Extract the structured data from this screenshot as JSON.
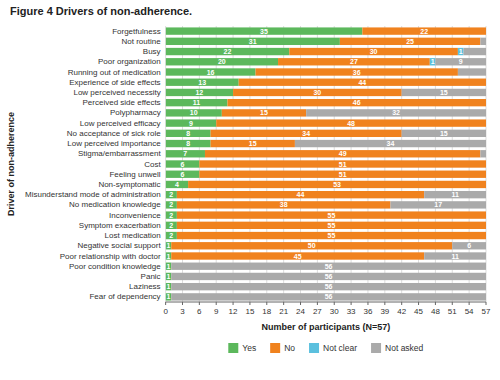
{
  "chart_data": {
    "type": "bar",
    "orientation": "horizontal",
    "stacked": true,
    "title": "Figure 4 Drivers of non-adherence.",
    "xlabel": "Number of participants (N=57)",
    "ylabel": "Driver of non-adherence",
    "categories": [
      "Forgetfulness",
      "Not routine",
      "Busy",
      "Poor organization",
      "Running out of medication",
      "Experience of side effects",
      "Low perceived necessity",
      "Perceived side effects",
      "Polypharmacy",
      "Low perceived efficacy",
      "No acceptance of sick role",
      "Low perceived importance",
      "Stigma/embarrassment",
      "Cost",
      "Feeling unwell",
      "Non-symptomatic",
      "Misunderstand mode of administration",
      "No medication knowledge",
      "Inconvenience",
      "Symptom exacerbation",
      "Lost medication",
      "Negative social support",
      "Poor relationship with doctor",
      "Poor condition knowledge",
      "Panic",
      "Laziness",
      "Fear of dependency"
    ],
    "series": [
      {
        "name": "Yes",
        "color": "#5cb85c",
        "values": [
          35,
          31,
          22,
          20,
          16,
          13,
          12,
          11,
          10,
          9,
          8,
          8,
          7,
          6,
          6,
          4,
          2,
          2,
          2,
          2,
          2,
          1,
          1,
          1,
          1,
          1,
          1
        ],
        "value_labels": [
          "35",
          "31",
          "22",
          "20",
          "16",
          "13",
          "12",
          "11",
          "10",
          "9",
          "8",
          "8",
          "7",
          "6",
          "6",
          "4",
          "2",
          "2",
          "2",
          "2",
          "2",
          "1",
          "1",
          "1",
          "1",
          "1",
          "1"
        ]
      },
      {
        "name": "No",
        "color": "#f0821e",
        "values": [
          22,
          25,
          30,
          27,
          36,
          44,
          30,
          46,
          15,
          48,
          34,
          15,
          49,
          51,
          51,
          53,
          44,
          38,
          55,
          55,
          55,
          50,
          45,
          0,
          0,
          0,
          0
        ],
        "value_labels": [
          "22",
          "25",
          "30",
          "27",
          "36",
          "44",
          "30",
          "46",
          "15",
          "48",
          "34",
          "15",
          "49",
          "51",
          "51",
          "53",
          "44",
          "38",
          "55",
          "55",
          "55",
          "50",
          "45",
          null,
          null,
          null,
          null
        ]
      },
      {
        "name": "Not clear",
        "color": "#5bc0de",
        "values": [
          0,
          0,
          1,
          1,
          0,
          0,
          0,
          0,
          0,
          0,
          0,
          0,
          0,
          0,
          0,
          0,
          0,
          0,
          0,
          0,
          0,
          0,
          0,
          0,
          0,
          0,
          0
        ],
        "value_labels": [
          null,
          null,
          "1",
          "1",
          null,
          null,
          null,
          null,
          null,
          null,
          null,
          null,
          null,
          null,
          null,
          null,
          null,
          null,
          null,
          null,
          null,
          null,
          null,
          null,
          null,
          null,
          null
        ]
      },
      {
        "name": "Not asked",
        "color": "#aaaaaa",
        "values": [
          0,
          1,
          4,
          9,
          5,
          0,
          15,
          0,
          32,
          0,
          15,
          34,
          1,
          0,
          0,
          0,
          11,
          17,
          0,
          0,
          0,
          6,
          11,
          56,
          56,
          56,
          56
        ],
        "value_labels": [
          null,
          null,
          null,
          "9",
          null,
          null,
          "15",
          null,
          "32",
          null,
          "15",
          "34",
          null,
          null,
          null,
          null,
          "11",
          "17",
          null,
          null,
          null,
          "6",
          "11",
          "56",
          "56",
          "56",
          "56"
        ]
      }
    ],
    "xlim": [
      0,
      57
    ],
    "xticks": [
      0,
      3,
      6,
      9,
      12,
      15,
      18,
      21,
      24,
      27,
      30,
      33,
      36,
      39,
      42,
      45,
      48,
      51,
      54,
      57
    ],
    "grid": true,
    "legend": "bottom",
    "data_labels": true
  }
}
